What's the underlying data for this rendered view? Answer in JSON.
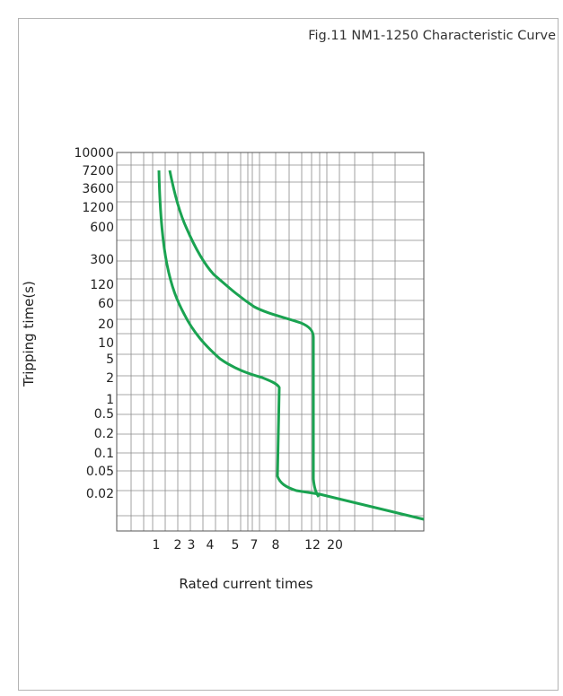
{
  "figure_title": "Fig.11 NM1-1250 Characteristic Curve",
  "colors": {
    "curve": "#1aa351",
    "grid": "#8a8a8a",
    "frame": "#b3b3b3"
  },
  "chart_data": {
    "type": "line",
    "title": "Fig.11 NM1-1250 Characteristic Curve",
    "xlabel": "Rated current times",
    "ylabel": "Tripping time(s)",
    "x_tick_labels": [
      "1",
      "2",
      "3",
      "4",
      "5",
      "7",
      "8",
      "12",
      "20"
    ],
    "y_tick_labels": [
      "10000",
      "7200",
      "3600",
      "1200",
      "600",
      "300",
      "120",
      "60",
      "20",
      "10",
      "5",
      "2",
      "1",
      "0.5",
      "0.2",
      "0.1",
      "0.05",
      "0.02"
    ],
    "grid": true,
    "series": [
      {
        "points": [
          [
            "1.3",
            7200
          ],
          [
            "1.35",
            1200
          ],
          [
            "1.5",
            300
          ],
          [
            "1.8",
            80
          ],
          [
            "2.3",
            30
          ],
          [
            "3",
            10
          ],
          [
            "4",
            3
          ],
          [
            "5",
            1.5
          ],
          [
            "6.5",
            0.9
          ],
          [
            "8",
            0.6
          ],
          [
            "8",
            0.05
          ],
          [
            "8.5",
            0.02
          ],
          [
            "12",
            0.0185
          ],
          [
            "20",
            0.01
          ],
          [
            ">20",
            0.005
          ]
        ]
      },
      {
        "points": [
          [
            "1.8",
            7200
          ],
          [
            "2.3",
            1200
          ],
          [
            "3",
            300
          ],
          [
            "4",
            120
          ],
          [
            "5",
            60
          ],
          [
            "7",
            30
          ],
          [
            "9",
            20
          ],
          [
            "12",
            12
          ],
          [
            "12",
            0.05
          ],
          [
            "12.5",
            0.02
          ],
          [
            "20",
            0.01
          ],
          [
            ">20",
            0.005
          ]
        ]
      }
    ]
  }
}
